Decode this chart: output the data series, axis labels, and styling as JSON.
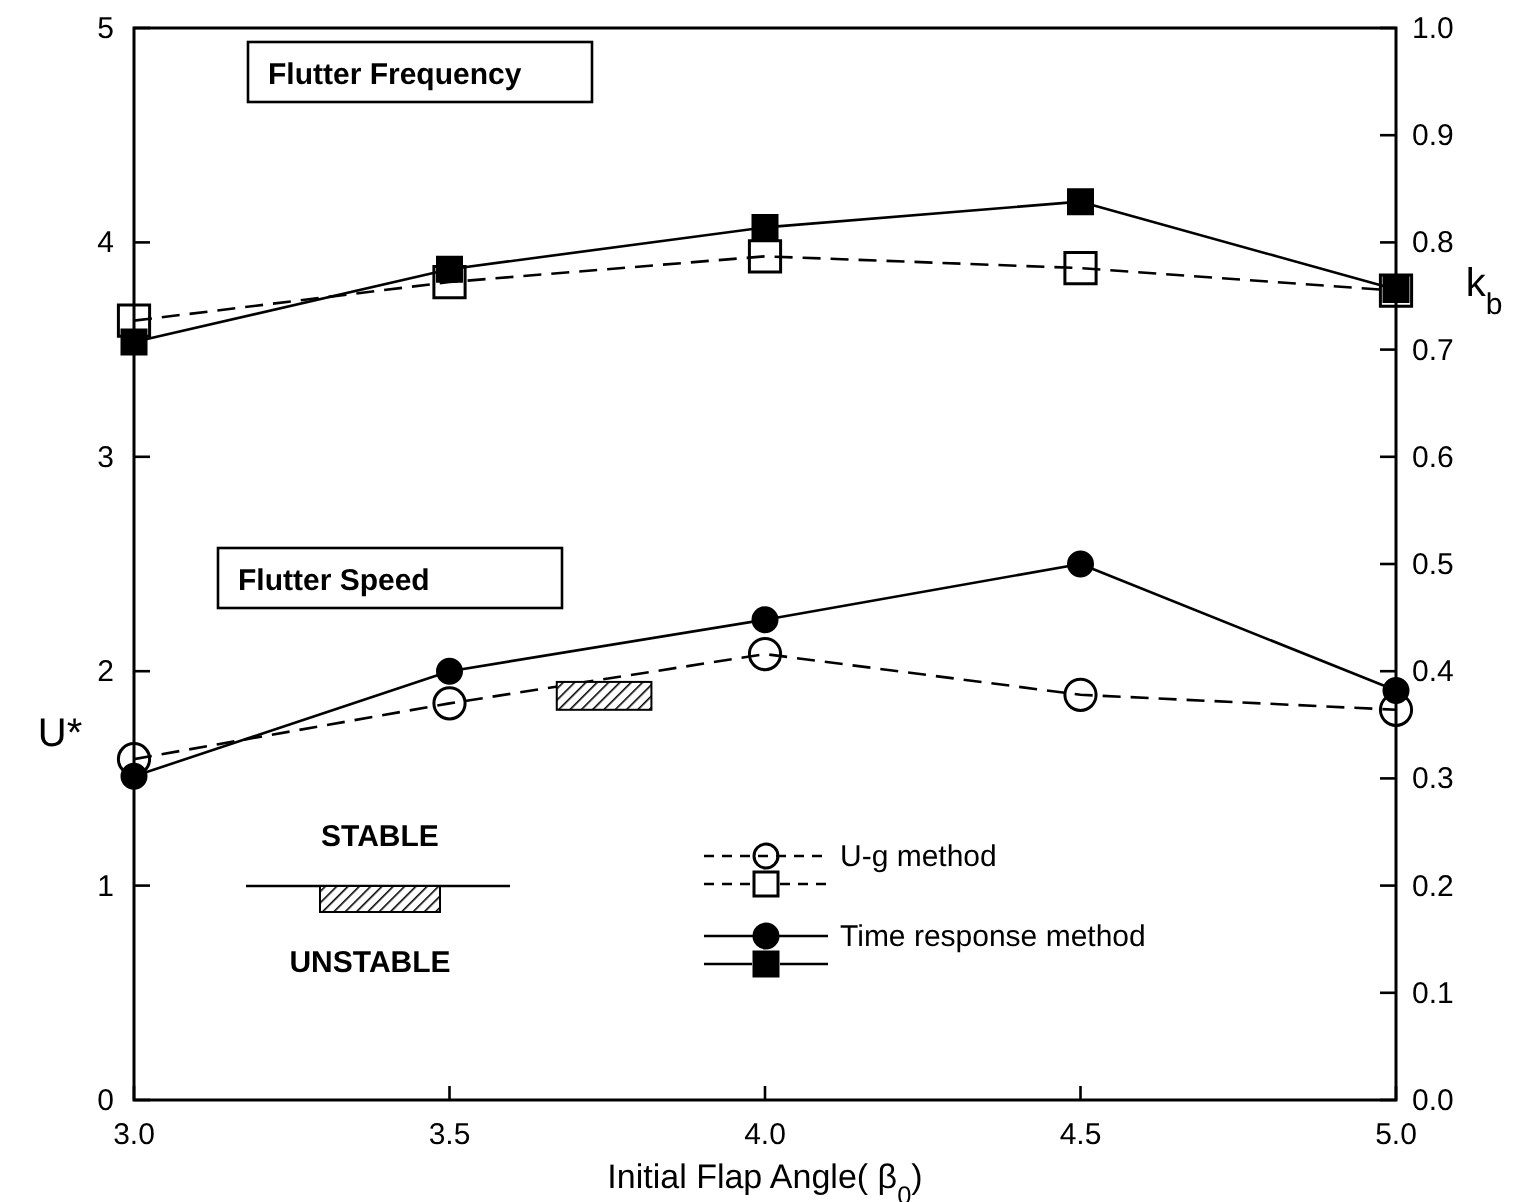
{
  "chart_data": {
    "type": "line",
    "xlabel": "Initial Flap Angle( β$_{0}$)",
    "ylabel": "U*",
    "y2label": "k$_{b}$",
    "x": [
      3.0,
      3.5,
      4.0,
      4.5,
      5.0
    ],
    "xlim": [
      3.0,
      5.0
    ],
    "xticks": [
      {
        "value": 3,
        "label": "3.0"
      },
      {
        "value": 3.5,
        "label": "3.5"
      },
      {
        "value": 4,
        "label": "4.0"
      },
      {
        "value": 4.5,
        "label": "4.5"
      },
      {
        "value": 5,
        "label": "5.0"
      }
    ],
    "ylim": [
      0,
      5
    ],
    "yticks": [
      0,
      1,
      2,
      3,
      4,
      5
    ],
    "y2lim": [
      0,
      1
    ],
    "y2ticks": [
      {
        "value": 0,
        "label": "0.0"
      },
      {
        "value": 0.1,
        "label": "0.1"
      },
      {
        "value": 0.2,
        "label": "0.2"
      },
      {
        "value": 0.3,
        "label": "0.3"
      },
      {
        "value": 0.4,
        "label": "0.4"
      },
      {
        "value": 0.5,
        "label": "0.5"
      },
      {
        "value": 0.6,
        "label": "0.6"
      },
      {
        "value": 0.7,
        "label": "0.7"
      },
      {
        "value": 0.8,
        "label": "0.8"
      },
      {
        "value": 0.9,
        "label": "0.9"
      },
      {
        "value": 1,
        "label": "1.0"
      }
    ],
    "grid": false,
    "legend": "bottom",
    "series": [
      {
        "name": "U-g method",
        "color": "#000000",
        "marker": "circle",
        "line_style": "dashed",
        "values": [
          1.59,
          1.85,
          2.08,
          1.89,
          1.82
        ]
      },
      {
        "color": "#000000",
        "marker": "square",
        "line_style": "dashed",
        "axis": "y2",
        "values": [
          0.727,
          0.763,
          0.787,
          0.776,
          0.755
        ]
      },
      {
        "name": "Time response method",
        "color": "#000000",
        "marker": "circle",
        "line_style": "solid",
        "values": [
          1.51,
          2.0,
          2.24,
          2.5,
          1.91
        ]
      },
      {
        "color": "#000000",
        "marker": "square",
        "line_style": "solid",
        "axis": "y2",
        "values": [
          0.707,
          0.775,
          0.814,
          0.838,
          0.756
        ]
      }
    ],
    "annotations": [
      "Flutter Frequency",
      "Flutter Speed",
      "STABLE",
      "UNSTABLE"
    ]
  }
}
